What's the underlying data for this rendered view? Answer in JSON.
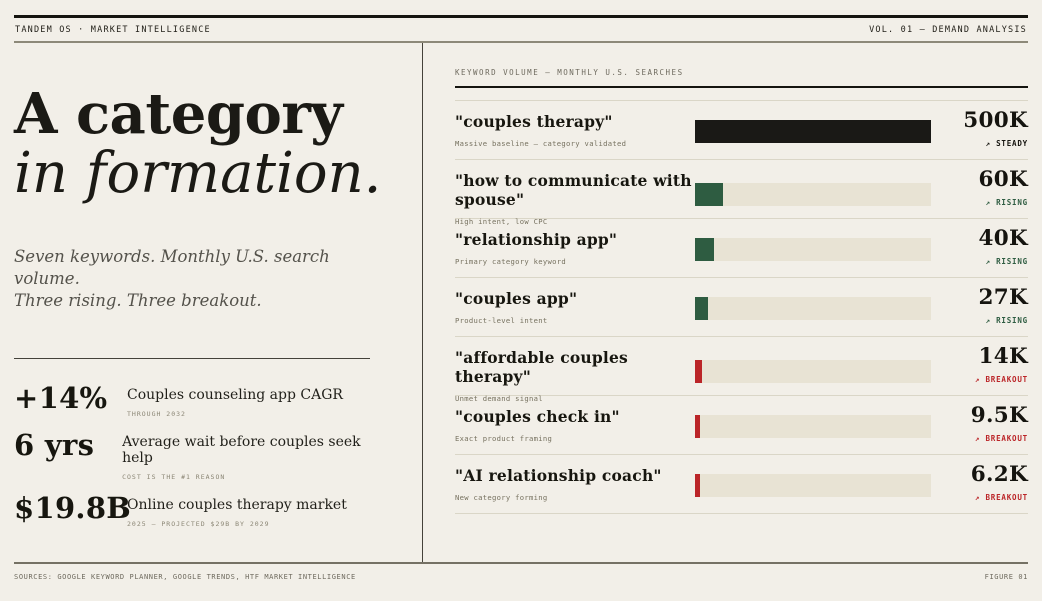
{
  "header": {
    "left": "TANDEM OS · MARKET INTELLIGENCE",
    "right": "VOL. 01 — DEMAND ANALYSIS"
  },
  "intro": {
    "title_line1": "A category",
    "title_line2": "in formation.",
    "subtitle_line1": "Seven keywords. Monthly U.S. search volume.",
    "subtitle_line2": "Three rising. Three breakout."
  },
  "stats": [
    {
      "value": "+14%",
      "label": "Couples counseling app CAGR",
      "note": "THROUGH 2032"
    },
    {
      "value": "6 yrs",
      "label": "Average wait before couples seek help",
      "note": "COST IS THE #1 REASON"
    },
    {
      "value": "$19.8B",
      "label": "Online couples therapy market",
      "note": "2025 — PROJECTED $29B BY 2029"
    }
  ],
  "chart_data": {
    "type": "bar",
    "orientation": "horizontal",
    "title": "KEYWORD VOLUME — MONTHLY U.S. SEARCHES",
    "xlim": [
      0,
      500000
    ],
    "categories": [
      "\"couples therapy\"",
      "\"how to communicate with spouse\"",
      "\"relationship app\"",
      "\"couples app\"",
      "\"affordable couples therapy\"",
      "\"couples check in\"",
      "\"AI relationship coach\""
    ],
    "values": [
      500000,
      60000,
      40000,
      27000,
      14000,
      9500,
      6200
    ],
    "rows": [
      {
        "keyword": "\"couples therapy\"",
        "description": "Massive baseline — category validated",
        "value": 500000,
        "value_label": "500K",
        "arrow": "↗",
        "trend": "STEADY",
        "tone": "steady",
        "bar_pct": 100
      },
      {
        "keyword": "\"how to communicate with spouse\"",
        "description": "High intent, low CPC",
        "value": 60000,
        "value_label": "60K",
        "arrow": "↗",
        "trend": "RISING",
        "tone": "rising",
        "bar_pct": 12
      },
      {
        "keyword": "\"relationship app\"",
        "description": "Primary category keyword",
        "value": 40000,
        "value_label": "40K",
        "arrow": "↗",
        "trend": "RISING",
        "tone": "rising",
        "bar_pct": 8
      },
      {
        "keyword": "\"couples app\"",
        "description": "Product-level intent",
        "value": 27000,
        "value_label": "27K",
        "arrow": "↗",
        "trend": "RISING",
        "tone": "rising",
        "bar_pct": 5.5
      },
      {
        "keyword": "\"affordable couples therapy\"",
        "description": "Unmet demand signal",
        "value": 14000,
        "value_label": "14K",
        "arrow": "↗",
        "trend": "BREAKOUT",
        "tone": "breakout",
        "bar_pct": 2.8
      },
      {
        "keyword": "\"couples check in\"",
        "description": "Exact product framing",
        "value": 9500,
        "value_label": "9.5K",
        "arrow": "↗",
        "trend": "BREAKOUT",
        "tone": "breakout",
        "bar_pct": 2.2
      },
      {
        "keyword": "\"AI relationship coach\"",
        "description": "New category forming",
        "value": 6200,
        "value_label": "6.2K",
        "arrow": "↗",
        "trend": "BREAKOUT",
        "tone": "breakout",
        "bar_pct": 2
      }
    ]
  },
  "footer": {
    "sources": "SOURCES: GOOGLE KEYWORD PLANNER, GOOGLE TRENDS, HTF MARKET INTELLIGENCE",
    "figure": "FIGURE 01"
  },
  "colors": {
    "background": "#f2efe8",
    "ink": "#17160f",
    "muted": "#6e6a5e",
    "bar_track": "#e8e3d4",
    "steady_black": "#1a1916",
    "rising_green": "#2e5c41",
    "breakout_red": "#bb2528"
  }
}
